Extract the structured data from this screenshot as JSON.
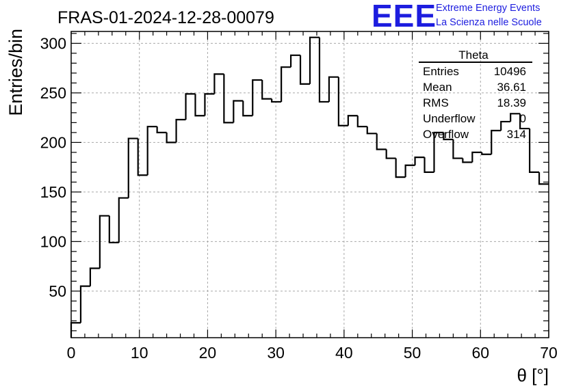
{
  "header": {
    "run_title": "FRAS-01-2024-12-28-00079",
    "logo_text": "EEE",
    "logo_line1": "Extreme Energy Events",
    "logo_line2": "La Scienza nelle Scuole",
    "logo_color": "#1d1ddf"
  },
  "stats_box": {
    "title": "Theta",
    "rows": [
      {
        "label": "Entries",
        "value": "10496"
      },
      {
        "label": "Mean",
        "value": "36.61"
      },
      {
        "label": "RMS",
        "value": "18.39"
      },
      {
        "label": "Underflow",
        "value": "0"
      },
      {
        "label": "Overflow",
        "value": "314"
      }
    ]
  },
  "chart_data": {
    "type": "histogram",
    "title": "FRAS-01-2024-12-28-00079",
    "xlabel": "θ [°]",
    "ylabel": "Entries/bin",
    "xlim": [
      0,
      70
    ],
    "ylim": [
      3,
      312
    ],
    "bin_width": 1.4,
    "x_ticks": [
      0,
      10,
      20,
      30,
      40,
      50,
      60,
      70
    ],
    "y_ticks": [
      50,
      100,
      150,
      200,
      250,
      300
    ],
    "grid": true,
    "line_color": "#000000",
    "bin_edges_start": 0,
    "values": [
      18,
      55,
      73,
      126,
      99,
      144,
      204,
      167,
      216,
      210,
      200,
      223,
      249,
      227,
      249,
      269,
      220,
      242,
      227,
      263,
      244,
      241,
      276,
      288,
      259,
      306,
      241,
      266,
      217,
      227,
      216,
      209,
      193,
      184,
      165,
      177,
      185,
      170,
      210,
      203,
      184,
      180,
      190,
      188,
      212,
      221,
      229,
      214,
      170,
      158
    ]
  }
}
